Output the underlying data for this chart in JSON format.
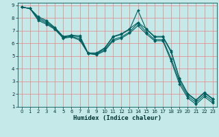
{
  "title": "",
  "xlabel": "Humidex (Indice chaleur)",
  "bg_color": "#c5e8e8",
  "grid_color": "#e88080",
  "line_color": "#006060",
  "xlim": [
    -0.5,
    23.5
  ],
  "ylim": [
    1,
    9.2
  ],
  "xticks": [
    0,
    1,
    2,
    3,
    4,
    5,
    6,
    7,
    8,
    9,
    10,
    11,
    12,
    13,
    14,
    15,
    16,
    17,
    18,
    19,
    20,
    21,
    22,
    23
  ],
  "yticks": [
    1,
    2,
    3,
    4,
    5,
    6,
    7,
    8,
    9
  ],
  "series": [
    {
      "x": [
        0,
        1,
        2,
        3,
        4,
        5,
        6,
        7,
        8,
        9,
        10,
        11,
        12,
        13,
        14,
        15,
        16,
        17,
        18,
        19,
        20,
        21,
        22,
        23
      ],
      "y": [
        8.85,
        8.75,
        8.0,
        7.7,
        7.2,
        6.5,
        6.6,
        6.5,
        5.2,
        5.2,
        5.6,
        6.5,
        6.7,
        7.1,
        8.6,
        7.1,
        6.5,
        6.5,
        5.3,
        3.2,
        2.0,
        1.5,
        2.1,
        1.6
      ]
    },
    {
      "x": [
        0,
        1,
        2,
        3,
        4,
        5,
        6,
        7,
        8,
        9,
        10,
        11,
        12,
        13,
        14,
        15,
        16,
        17,
        18,
        19,
        20,
        21,
        22,
        23
      ],
      "y": [
        8.85,
        8.75,
        7.9,
        7.6,
        7.15,
        6.45,
        6.55,
        6.35,
        5.2,
        5.15,
        5.5,
        6.3,
        6.5,
        6.9,
        7.6,
        6.9,
        6.3,
        6.3,
        4.8,
        3.0,
        1.85,
        1.35,
        1.95,
        1.45
      ]
    },
    {
      "x": [
        0,
        1,
        2,
        3,
        4,
        5,
        6,
        7,
        8,
        9,
        10,
        11,
        12,
        13,
        14,
        15,
        16,
        17,
        18,
        19,
        20,
        21,
        22,
        23
      ],
      "y": [
        8.85,
        8.75,
        7.8,
        7.5,
        7.1,
        6.4,
        6.5,
        6.25,
        5.2,
        5.1,
        5.4,
        6.2,
        6.4,
        6.8,
        7.4,
        6.75,
        6.2,
        6.2,
        4.6,
        2.8,
        1.7,
        1.2,
        1.8,
        1.3
      ]
    },
    {
      "x": [
        0,
        1,
        2,
        3,
        4,
        5,
        6,
        7,
        8,
        9,
        10,
        11,
        12,
        13,
        14,
        15,
        16,
        17,
        18,
        19,
        20,
        21,
        22,
        23
      ],
      "y": [
        8.85,
        8.75,
        8.1,
        7.8,
        7.25,
        6.55,
        6.65,
        6.6,
        5.25,
        5.25,
        5.65,
        6.55,
        6.75,
        7.15,
        7.65,
        7.15,
        6.55,
        6.55,
        5.4,
        3.25,
        2.05,
        1.55,
        2.15,
        1.65
      ]
    }
  ]
}
